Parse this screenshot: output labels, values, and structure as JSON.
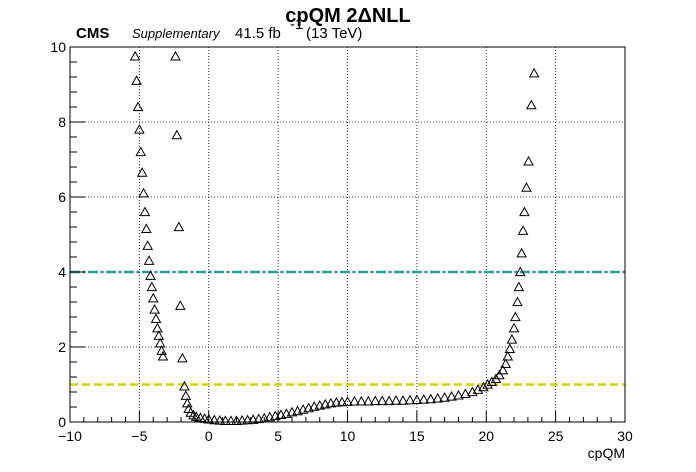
{
  "chart_data": {
    "type": "scatter",
    "title": "cpQM 2ΔNLL",
    "cms_label": "CMS",
    "supplementary_label": "Supplementary",
    "lumi_label": "41.5 fb",
    "lumi_superscript": "-1",
    "energy_label": "(13 TeV)",
    "xlabel": "cpQM",
    "ylabel": "",
    "xlim": [
      -10,
      30
    ],
    "ylim": [
      0,
      10
    ],
    "x_ticks": [
      -10,
      -5,
      0,
      5,
      10,
      15,
      20,
      25,
      30
    ],
    "x_tick_labels": [
      "−10",
      "−5",
      "0",
      "5",
      "10",
      "15",
      "20",
      "25",
      "30"
    ],
    "y_ticks": [
      0,
      2,
      4,
      6,
      8,
      10
    ],
    "y_tick_labels": [
      "0",
      "2",
      "4",
      "6",
      "8",
      "10"
    ],
    "grid": true,
    "marker": "open-triangle",
    "reference_lines": [
      {
        "y": 4,
        "color": "#2a9d9d",
        "style": "dash-dot"
      },
      {
        "y": 1,
        "color": "#d4d400",
        "style": "dashed"
      }
    ],
    "points": [
      [
        -5.3,
        9.75
      ],
      [
        -5.2,
        9.1
      ],
      [
        -5.1,
        8.4
      ],
      [
        -5.0,
        7.8
      ],
      [
        -4.9,
        7.2
      ],
      [
        -4.8,
        6.65
      ],
      [
        -4.7,
        6.1
      ],
      [
        -4.6,
        5.6
      ],
      [
        -4.5,
        5.15
      ],
      [
        -4.4,
        4.7
      ],
      [
        -4.3,
        4.3
      ],
      [
        -4.2,
        3.9
      ],
      [
        -4.1,
        3.6
      ],
      [
        -4.0,
        3.3
      ],
      [
        -3.9,
        3.0
      ],
      [
        -3.8,
        2.75
      ],
      [
        -3.7,
        2.5
      ],
      [
        -3.6,
        2.3
      ],
      [
        -3.5,
        2.1
      ],
      [
        -3.4,
        1.9
      ],
      [
        -3.3,
        1.75
      ],
      [
        -2.4,
        9.75
      ],
      [
        -2.3,
        7.65
      ],
      [
        -2.15,
        5.2
      ],
      [
        -2.05,
        3.1
      ],
      [
        -1.9,
        1.7
      ],
      [
        -1.75,
        0.95
      ],
      [
        -1.65,
        0.7
      ],
      [
        -1.55,
        0.5
      ],
      [
        -1.45,
        0.35
      ],
      [
        -1.3,
        0.25
      ],
      [
        -1.1,
        0.18
      ],
      [
        -0.9,
        0.14
      ],
      [
        -0.6,
        0.11
      ],
      [
        -0.3,
        0.09
      ],
      [
        0.0,
        0.07
      ],
      [
        0.4,
        0.05
      ],
      [
        0.8,
        0.04
      ],
      [
        1.2,
        0.03
      ],
      [
        1.6,
        0.03
      ],
      [
        2.0,
        0.03
      ],
      [
        2.4,
        0.04
      ],
      [
        2.8,
        0.05
      ],
      [
        3.2,
        0.06
      ],
      [
        3.6,
        0.08
      ],
      [
        4.0,
        0.1
      ],
      [
        4.4,
        0.13
      ],
      [
        4.8,
        0.16
      ],
      [
        5.2,
        0.19
      ],
      [
        5.6,
        0.22
      ],
      [
        6.0,
        0.26
      ],
      [
        6.4,
        0.29
      ],
      [
        6.8,
        0.33
      ],
      [
        7.2,
        0.37
      ],
      [
        7.6,
        0.41
      ],
      [
        8.0,
        0.44
      ],
      [
        8.4,
        0.47
      ],
      [
        8.8,
        0.5
      ],
      [
        9.2,
        0.52
      ],
      [
        9.6,
        0.53
      ],
      [
        10.0,
        0.54
      ],
      [
        10.5,
        0.55
      ],
      [
        11.0,
        0.55
      ],
      [
        11.5,
        0.55
      ],
      [
        12.0,
        0.56
      ],
      [
        12.5,
        0.56
      ],
      [
        13.0,
        0.56
      ],
      [
        13.5,
        0.57
      ],
      [
        14.0,
        0.57
      ],
      [
        14.5,
        0.58
      ],
      [
        15.0,
        0.59
      ],
      [
        15.5,
        0.6
      ],
      [
        16.0,
        0.61
      ],
      [
        16.5,
        0.63
      ],
      [
        17.0,
        0.65
      ],
      [
        17.5,
        0.68
      ],
      [
        18.0,
        0.71
      ],
      [
        18.5,
        0.75
      ],
      [
        19.0,
        0.8
      ],
      [
        19.4,
        0.86
      ],
      [
        19.8,
        0.93
      ],
      [
        20.1,
        1.0
      ],
      [
        20.4,
        1.07
      ],
      [
        20.7,
        1.15
      ],
      [
        20.95,
        1.25
      ],
      [
        21.2,
        1.38
      ],
      [
        21.4,
        1.55
      ],
      [
        21.55,
        1.75
      ],
      [
        21.7,
        1.95
      ],
      [
        21.85,
        2.2
      ],
      [
        22.0,
        2.5
      ],
      [
        22.1,
        2.8
      ],
      [
        22.25,
        3.2
      ],
      [
        22.35,
        3.6
      ],
      [
        22.45,
        4.0
      ],
      [
        22.55,
        4.5
      ],
      [
        22.65,
        5.1
      ],
      [
        22.75,
        5.6
      ],
      [
        22.9,
        6.25
      ],
      [
        23.05,
        6.95
      ],
      [
        23.25,
        8.45
      ],
      [
        23.45,
        9.3
      ]
    ]
  }
}
